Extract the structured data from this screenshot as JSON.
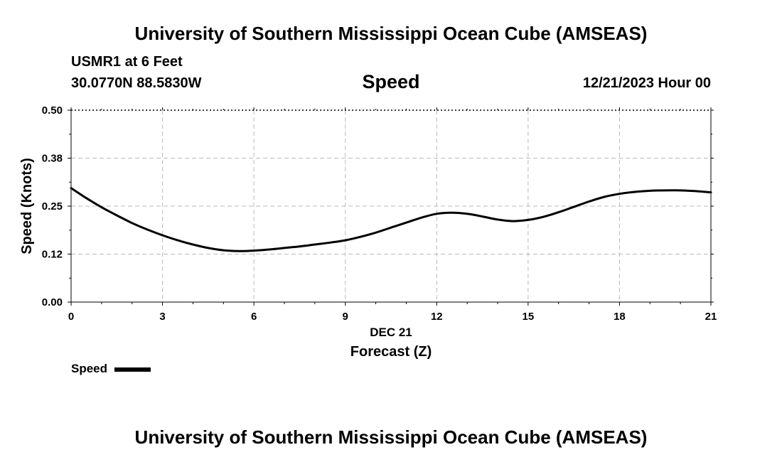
{
  "header": {
    "title": "University of Southern Mississippi Ocean Cube (AMSEAS)",
    "station": "USMR1 at 6 Feet",
    "coords": "30.0770N  88.5830W",
    "datetime": "12/21/2023 Hour 00"
  },
  "footer": {
    "title": "University of Southern Mississippi Ocean Cube (AMSEAS)"
  },
  "legend": {
    "label": "Speed"
  },
  "chart_data": {
    "type": "line",
    "title": "Speed",
    "xlabel": "Forecast (Z)",
    "xdate_label": "DEC 21",
    "ylabel": "Speed (Knots)",
    "xlim": [
      0,
      21
    ],
    "ylim": [
      0,
      0.5
    ],
    "xticks": [
      0,
      3,
      6,
      9,
      12,
      15,
      18,
      21
    ],
    "xtick_labels": [
      "0",
      "3",
      "6",
      "9",
      "12",
      "15",
      "18",
      "21"
    ],
    "yticks": [
      0,
      0.125,
      0.25,
      0.375,
      0.5
    ],
    "ytick_labels": [
      "0.00",
      "0.12",
      "0.25",
      "0.38",
      "0.50"
    ],
    "grid": true,
    "legend_position": "bottom-left",
    "series": [
      {
        "name": "Speed",
        "color": "#000000",
        "x": [
          0,
          0.5,
          1,
          1.5,
          2,
          2.5,
          3,
          3.5,
          4,
          4.5,
          5,
          5.5,
          6,
          6.5,
          7,
          7.5,
          8,
          8.5,
          9,
          9.5,
          10,
          10.5,
          11,
          11.5,
          12,
          12.5,
          13,
          13.5,
          14,
          14.5,
          15,
          15.5,
          16,
          16.5,
          17,
          17.5,
          18,
          18.5,
          19,
          19.5,
          20,
          20.5,
          21
        ],
        "values": [
          0.297,
          0.271,
          0.247,
          0.226,
          0.206,
          0.189,
          0.174,
          0.161,
          0.15,
          0.141,
          0.135,
          0.133,
          0.134,
          0.137,
          0.141,
          0.145,
          0.15,
          0.155,
          0.161,
          0.17,
          0.181,
          0.194,
          0.207,
          0.22,
          0.23,
          0.233,
          0.23,
          0.223,
          0.215,
          0.211,
          0.214,
          0.222,
          0.234,
          0.248,
          0.262,
          0.274,
          0.282,
          0.287,
          0.29,
          0.291,
          0.291,
          0.289,
          0.286
        ]
      }
    ]
  }
}
